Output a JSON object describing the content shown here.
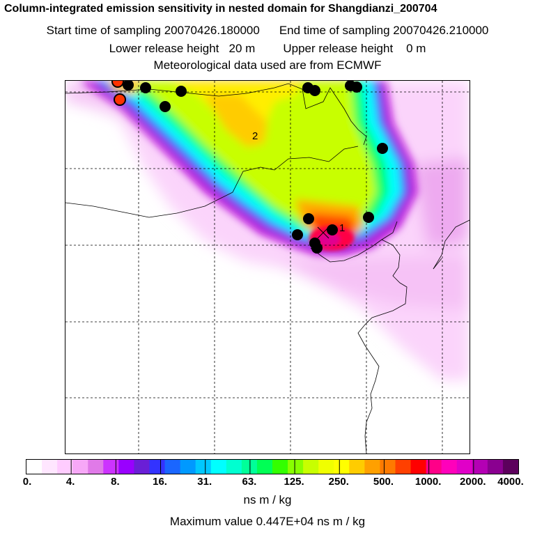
{
  "header": {
    "title": "Column-integrated emission sensitivity in nested domain for Shangdianzi_200704",
    "start_label": "Start time of sampling 20070426.180000",
    "end_label": "End time of sampling 20070426.210000",
    "lower_label": "Lower release height   20 m",
    "upper_label": "Upper release height    0 m",
    "met_label": "Meteorological data used are from ECMWF"
  },
  "map": {
    "labels": {
      "label_1": "1",
      "label_2": "2"
    },
    "colors": {
      "red_marker": "#ff3300",
      "black_marker": "#000000"
    }
  },
  "colorbar": {
    "ticks": [
      "0.",
      "4.",
      "8.",
      "16.",
      "31.",
      "63.",
      "125.",
      "250.",
      "500.",
      "1000.",
      "2000.",
      "4000."
    ],
    "colors": [
      "#ffffff",
      "#ffe6ff",
      "#ffccff",
      "#f7a8f7",
      "#e07ae8",
      "#cc33ff",
      "#9900ff",
      "#6a1fd6",
      "#3333ff",
      "#1a66ff",
      "#0099ff",
      "#00c8ff",
      "#00ffff",
      "#00ffd0",
      "#00ff99",
      "#00ff55",
      "#33ff00",
      "#88ff00",
      "#c8ff00",
      "#f0ff00",
      "#ffff00",
      "#ffcc00",
      "#ffa000",
      "#ff7a00",
      "#ff4000",
      "#ff0000",
      "#ff0088",
      "#ff00bb",
      "#e000c8",
      "#b400b4",
      "#8a0090",
      "#5c005c"
    ],
    "units": "ns m / kg"
  },
  "footer": {
    "max_label": "Maximum value  0.447E+04 ns m / kg"
  }
}
